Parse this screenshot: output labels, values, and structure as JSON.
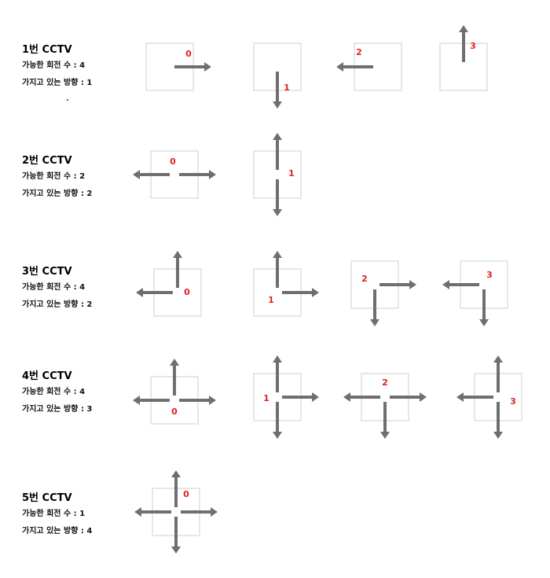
{
  "rotation_label": "가능한 회전 수 : ",
  "direction_label": "가지고 있는 방향 : ",
  "accent_color": "#e02020",
  "arrow_color": "#6f6f6f",
  "box_border_color": "#cfcfcf",
  "cctvs": [
    {
      "title": "1번 CCTV",
      "rotations": "4",
      "directions": "1",
      "variants": [
        {
          "label": "0",
          "arrows": [
            "right"
          ]
        },
        {
          "label": "1",
          "arrows": [
            "down"
          ]
        },
        {
          "label": "2",
          "arrows": [
            "left"
          ]
        },
        {
          "label": "3",
          "arrows": [
            "up"
          ]
        }
      ]
    },
    {
      "title": "2번 CCTV",
      "rotations": "2",
      "directions": "2",
      "variants": [
        {
          "label": "0",
          "arrows": [
            "left",
            "right"
          ]
        },
        {
          "label": "1",
          "arrows": [
            "up",
            "down"
          ]
        }
      ]
    },
    {
      "title": "3번 CCTV",
      "rotations": "4",
      "directions": "2",
      "variants": [
        {
          "label": "0",
          "arrows": [
            "up",
            "left"
          ]
        },
        {
          "label": "1",
          "arrows": [
            "up",
            "right"
          ]
        },
        {
          "label": "2",
          "arrows": [
            "right",
            "down"
          ]
        },
        {
          "label": "3",
          "arrows": [
            "left",
            "down"
          ]
        }
      ]
    },
    {
      "title": "4번 CCTV",
      "rotations": "4",
      "directions": "3",
      "variants": [
        {
          "label": "0",
          "arrows": [
            "up",
            "left",
            "right"
          ]
        },
        {
          "label": "1",
          "arrows": [
            "up",
            "right",
            "down"
          ]
        },
        {
          "label": "2",
          "arrows": [
            "left",
            "right",
            "down"
          ]
        },
        {
          "label": "3",
          "arrows": [
            "up",
            "left",
            "down"
          ]
        }
      ]
    },
    {
      "title": "5번 CCTV",
      "rotations": "1",
      "directions": "4",
      "variants": [
        {
          "label": "0",
          "arrows": [
            "up",
            "down",
            "left",
            "right"
          ]
        }
      ]
    }
  ]
}
